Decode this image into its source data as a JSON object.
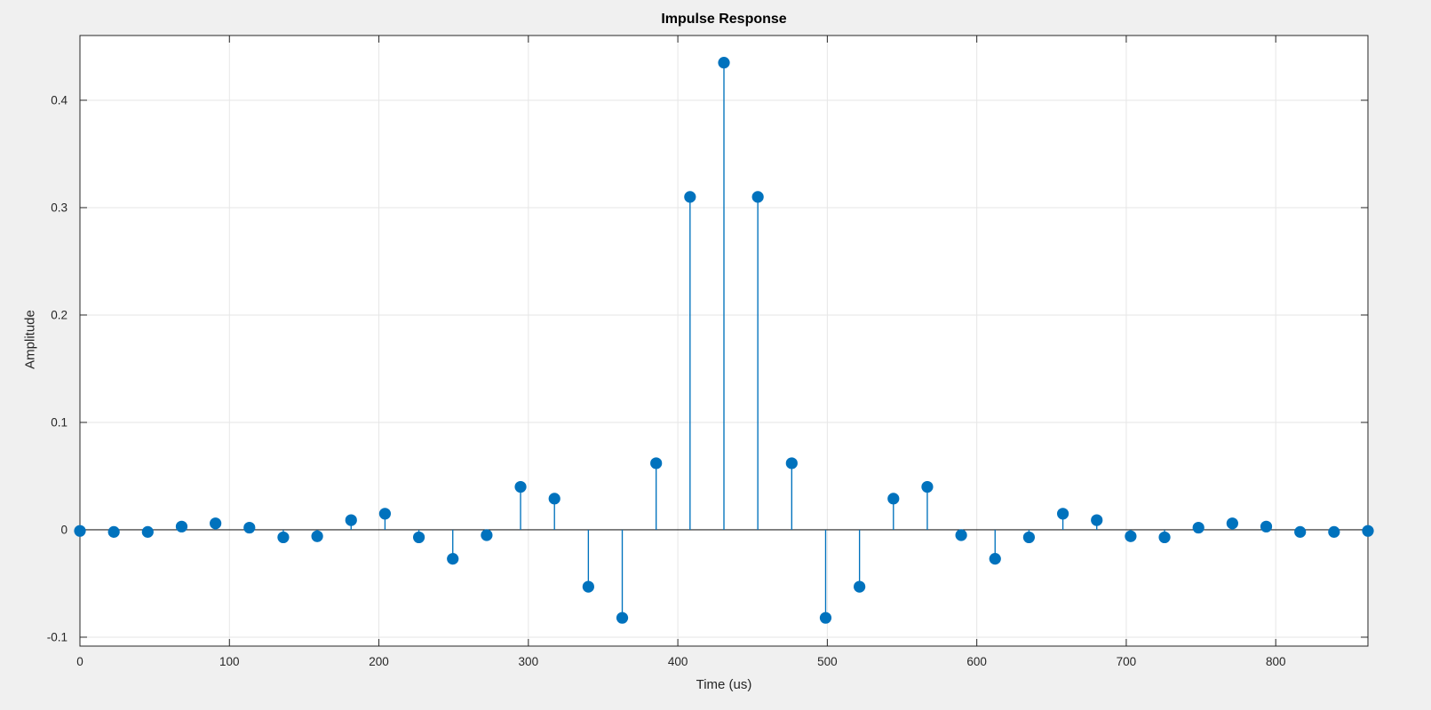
{
  "figure": {
    "background_color": "#F0F0F0",
    "plot_background_color": "#FFFFFF",
    "axis_color": "#262626",
    "grid_color": "#E6E6E6",
    "tick_label_color": "#262626"
  },
  "chart_data": {
    "type": "stem",
    "title": "Impulse Response",
    "xlabel": "Time (us)",
    "ylabel": "Amplitude",
    "stem_color": "#0072BD",
    "marker": "filled-circle",
    "grid": true,
    "box": true,
    "legend": "none",
    "xlim": [
      0,
      861.68
    ],
    "ylim": [
      -0.1083,
      0.4603
    ],
    "xticks": [
      0,
      100,
      200,
      300,
      400,
      500,
      600,
      700,
      800
    ],
    "xtick_labels": [
      "0",
      "100",
      "200",
      "300",
      "400",
      "500",
      "600",
      "700",
      "800"
    ],
    "yticks": [
      -0.1,
      0,
      0.1,
      0.2,
      0.3,
      0.4
    ],
    "ytick_labels": [
      "-0.1",
      "0",
      "0.1",
      "0.2",
      "0.3",
      "0.4"
    ],
    "x": [
      0,
      22.68,
      45.35,
      68.03,
      90.7,
      113.38,
      136.05,
      158.73,
      181.41,
      204.08,
      226.76,
      249.43,
      272.11,
      294.78,
      317.46,
      340.14,
      362.81,
      385.49,
      408.16,
      430.84,
      453.51,
      476.19,
      498.87,
      521.54,
      544.22,
      566.89,
      589.57,
      612.24,
      634.92,
      657.6,
      680.27,
      702.95,
      725.62,
      748.3,
      770.98,
      793.65,
      816.33,
      839.0,
      861.68
    ],
    "values": [
      -0.001,
      -0.002,
      -0.002,
      0.003,
      0.006,
      0.002,
      -0.007,
      -0.006,
      0.009,
      0.015,
      -0.007,
      -0.027,
      -0.005,
      0.04,
      0.029,
      -0.053,
      -0.082,
      0.062,
      0.31,
      0.435,
      0.31,
      0.062,
      -0.082,
      -0.053,
      0.029,
      0.04,
      -0.005,
      -0.027,
      -0.007,
      0.015,
      0.009,
      -0.006,
      -0.007,
      0.002,
      0.006,
      0.003,
      -0.002,
      -0.002,
      -0.001
    ]
  }
}
